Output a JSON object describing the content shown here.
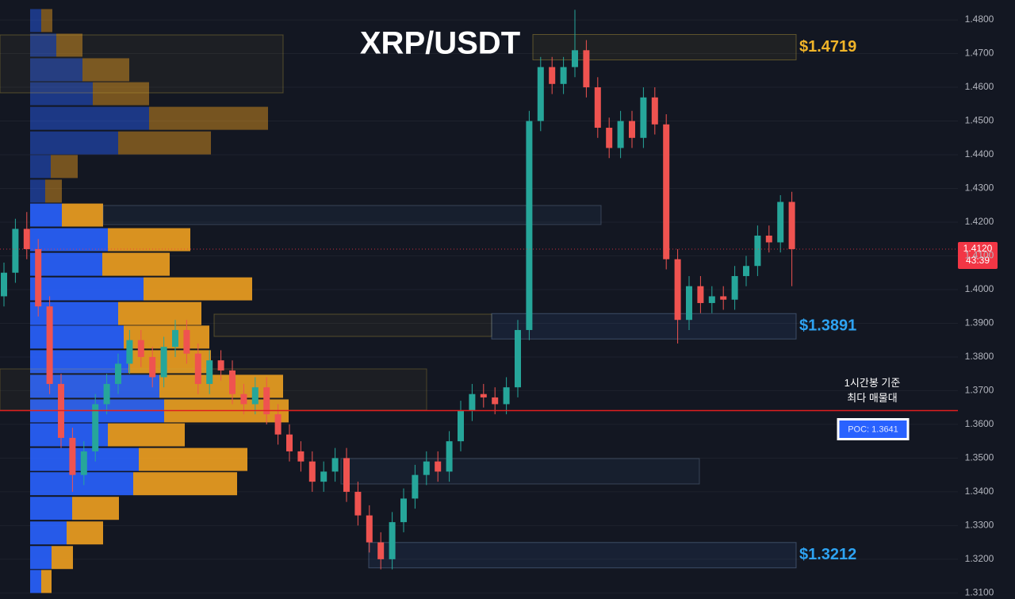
{
  "chart_data": {
    "type": "candlestick",
    "title": "XRP/USDT",
    "ylim": [
      1.3082,
      1.4859
    ],
    "yticks": [
      {
        "value": 1.48,
        "label": "1.4800"
      },
      {
        "value": 1.47,
        "label": "1.4700"
      },
      {
        "value": 1.46,
        "label": "1.4600"
      },
      {
        "value": 1.45,
        "label": "1.4500"
      },
      {
        "value": 1.44,
        "label": "1.4400"
      },
      {
        "value": 1.43,
        "label": "1.4300"
      },
      {
        "value": 1.42,
        "label": "1.4200"
      },
      {
        "value": 1.41,
        "label": "1.4100"
      },
      {
        "value": 1.4,
        "label": "1.4000"
      },
      {
        "value": 1.39,
        "label": "1.3900"
      },
      {
        "value": 1.38,
        "label": "1.3800"
      },
      {
        "value": 1.37,
        "label": "1.3700"
      },
      {
        "value": 1.36,
        "label": "1.3600"
      },
      {
        "value": 1.35,
        "label": "1.3500"
      },
      {
        "value": 1.34,
        "label": "1.3400"
      },
      {
        "value": 1.33,
        "label": "1.3300"
      },
      {
        "value": 1.32,
        "label": "1.3200"
      },
      {
        "value": 1.31,
        "label": "1.3100"
      }
    ],
    "grid": true,
    "up_color": "#26a69a",
    "down_color": "#ef5350",
    "candles": [
      [
        1.398,
        1.408,
        1.395,
        1.405
      ],
      [
        1.405,
        1.421,
        1.402,
        1.418
      ],
      [
        1.418,
        1.423,
        1.409,
        1.412
      ],
      [
        1.412,
        1.415,
        1.392,
        1.395
      ],
      [
        1.395,
        1.398,
        1.369,
        1.372
      ],
      [
        1.372,
        1.375,
        1.353,
        1.356
      ],
      [
        1.356,
        1.359,
        1.34,
        1.345
      ],
      [
        1.345,
        1.355,
        1.342,
        1.352
      ],
      [
        1.352,
        1.369,
        1.349,
        1.366
      ],
      [
        1.366,
        1.375,
        1.363,
        1.372
      ],
      [
        1.372,
        1.381,
        1.369,
        1.378
      ],
      [
        1.378,
        1.388,
        1.375,
        1.385
      ],
      [
        1.385,
        1.388,
        1.377,
        1.38
      ],
      [
        1.38,
        1.383,
        1.371,
        1.374
      ],
      [
        1.374,
        1.386,
        1.371,
        1.383
      ],
      [
        1.383,
        1.391,
        1.38,
        1.388
      ],
      [
        1.388,
        1.391,
        1.378,
        1.381
      ],
      [
        1.381,
        1.384,
        1.369,
        1.372
      ],
      [
        1.372,
        1.382,
        1.369,
        1.379
      ],
      [
        1.379,
        1.382,
        1.373,
        1.376
      ],
      [
        1.376,
        1.379,
        1.366,
        1.369
      ],
      [
        1.369,
        1.372,
        1.363,
        1.366
      ],
      [
        1.366,
        1.374,
        1.363,
        1.371
      ],
      [
        1.371,
        1.374,
        1.36,
        1.363
      ],
      [
        1.363,
        1.366,
        1.354,
        1.357
      ],
      [
        1.357,
        1.36,
        1.349,
        1.352
      ],
      [
        1.352,
        1.355,
        1.346,
        1.349
      ],
      [
        1.349,
        1.352,
        1.34,
        1.343
      ],
      [
        1.343,
        1.349,
        1.34,
        1.346
      ],
      [
        1.346,
        1.353,
        1.343,
        1.35
      ],
      [
        1.35,
        1.353,
        1.337,
        1.34
      ],
      [
        1.34,
        1.343,
        1.33,
        1.333
      ],
      [
        1.333,
        1.336,
        1.322,
        1.325
      ],
      [
        1.325,
        1.328,
        1.317,
        1.32
      ],
      [
        1.32,
        1.334,
        1.317,
        1.331
      ],
      [
        1.331,
        1.341,
        1.328,
        1.338
      ],
      [
        1.338,
        1.348,
        1.335,
        1.345
      ],
      [
        1.345,
        1.352,
        1.342,
        1.349
      ],
      [
        1.349,
        1.352,
        1.343,
        1.346
      ],
      [
        1.346,
        1.358,
        1.343,
        1.355
      ],
      [
        1.355,
        1.367,
        1.352,
        1.364
      ],
      [
        1.364,
        1.372,
        1.361,
        1.369
      ],
      [
        1.369,
        1.372,
        1.365,
        1.368
      ],
      [
        1.368,
        1.371,
        1.363,
        1.366
      ],
      [
        1.366,
        1.374,
        1.363,
        1.371
      ],
      [
        1.371,
        1.391,
        1.368,
        1.388
      ],
      [
        1.388,
        1.453,
        1.385,
        1.45
      ],
      [
        1.45,
        1.469,
        1.447,
        1.466
      ],
      [
        1.466,
        1.469,
        1.458,
        1.461
      ],
      [
        1.461,
        1.469,
        1.458,
        1.466
      ],
      [
        1.466,
        1.483,
        1.463,
        1.471
      ],
      [
        1.471,
        1.474,
        1.457,
        1.46
      ],
      [
        1.46,
        1.463,
        1.445,
        1.448
      ],
      [
        1.448,
        1.451,
        1.439,
        1.442
      ],
      [
        1.442,
        1.453,
        1.439,
        1.45
      ],
      [
        1.45,
        1.453,
        1.442,
        1.445
      ],
      [
        1.445,
        1.46,
        1.442,
        1.457
      ],
      [
        1.457,
        1.46,
        1.446,
        1.449
      ],
      [
        1.449,
        1.452,
        1.406,
        1.409
      ],
      [
        1.409,
        1.412,
        1.384,
        1.391
      ],
      [
        1.391,
        1.404,
        1.388,
        1.401
      ],
      [
        1.401,
        1.404,
        1.393,
        1.396
      ],
      [
        1.396,
        1.401,
        1.393,
        1.398
      ],
      [
        1.398,
        1.401,
        1.394,
        1.397
      ],
      [
        1.397,
        1.407,
        1.394,
        1.404
      ],
      [
        1.404,
        1.41,
        1.401,
        1.407
      ],
      [
        1.407,
        1.419,
        1.404,
        1.416
      ],
      [
        1.416,
        1.419,
        1.411,
        1.414
      ],
      [
        1.414,
        1.428,
        1.411,
        1.426
      ],
      [
        1.426,
        1.429,
        1.401,
        1.412
      ]
    ],
    "volume_profile": {
      "buy_color": "#2962ff",
      "sell_color": "#f0a020",
      "rows": [
        {
          "price": 1.4798,
          "buy": 14,
          "sell": 14
        },
        {
          "price": 1.4725,
          "buy": 33,
          "sell": 33
        },
        {
          "price": 1.4652,
          "buy": 66,
          "sell": 59
        },
        {
          "price": 1.4581,
          "buy": 79,
          "sell": 71
        },
        {
          "price": 1.4508,
          "buy": 150,
          "sell": 150
        },
        {
          "price": 1.4435,
          "buy": 111,
          "sell": 117
        },
        {
          "price": 1.4365,
          "buy": 26,
          "sell": 34
        },
        {
          "price": 1.4292,
          "buy": 19,
          "sell": 21
        },
        {
          "price": 1.4221,
          "buy": 40,
          "sell": 52
        },
        {
          "price": 1.4148,
          "buy": 98,
          "sell": 104
        },
        {
          "price": 1.4075,
          "buy": 91,
          "sell": 85
        },
        {
          "price": 1.4002,
          "buy": 143,
          "sell": 137
        },
        {
          "price": 1.3929,
          "buy": 111,
          "sell": 105
        },
        {
          "price": 1.3859,
          "buy": 118,
          "sell": 108
        },
        {
          "price": 1.3786,
          "buy": 124,
          "sell": 104
        },
        {
          "price": 1.3713,
          "buy": 163,
          "sell": 156
        },
        {
          "price": 1.364,
          "buy": 169,
          "sell": 157
        },
        {
          "price": 1.3569,
          "buy": 98,
          "sell": 97
        },
        {
          "price": 1.3496,
          "buy": 137,
          "sell": 137
        },
        {
          "price": 1.3424,
          "buy": 130,
          "sell": 131
        },
        {
          "price": 1.3351,
          "buy": 53,
          "sell": 59
        },
        {
          "price": 1.3278,
          "buy": 46,
          "sell": 46
        },
        {
          "price": 1.3205,
          "buy": 27,
          "sell": 27
        },
        {
          "price": 1.3134,
          "buy": 14,
          "sell": 13
        }
      ]
    },
    "levels": [
      {
        "label": "$1.4719",
        "value": 1.4719,
        "color": "#f0b429"
      },
      {
        "label": "$1.3891",
        "value": 1.3891,
        "color": "#2ea3f2"
      },
      {
        "label": "$1.3212",
        "value": 1.3212,
        "color": "#2ea3f2"
      }
    ],
    "poc": {
      "label": "POC: 1.3641",
      "value": 1.3641,
      "annotation": [
        "1시간봉 기준",
        "최다 매물대"
      ]
    },
    "current_price": {
      "label": "1.4120",
      "value": 1.412,
      "countdown": "43:39"
    }
  }
}
